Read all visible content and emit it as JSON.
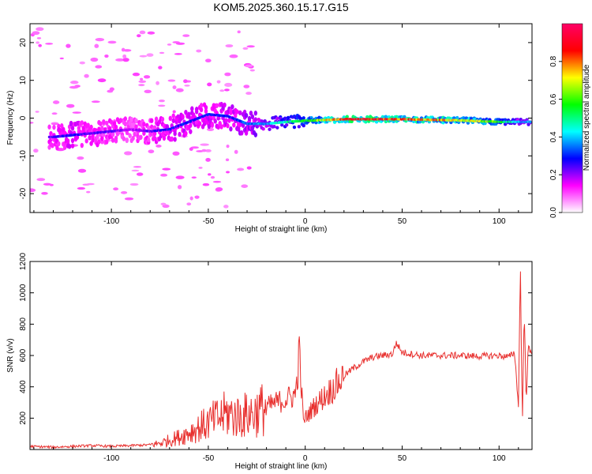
{
  "title": "KOM5.2025.360.15.17.G15",
  "colors": {
    "snr_line": "#e8302e",
    "axis": "#000000",
    "background": "#ffffff"
  },
  "chart_data": [
    {
      "type": "heatmap",
      "xlabel": "Height of straight line (km)",
      "ylabel": "Frequency (Hz)",
      "xlim": [
        -142,
        117
      ],
      "ylim": [
        -25,
        25
      ],
      "x_ticks": [
        -100,
        -50,
        0,
        50,
        100
      ],
      "y_ticks": [
        -20,
        -10,
        0,
        10,
        20
      ],
      "colorbar": {
        "label": "Normalized spectral amplitude",
        "range": [
          0,
          1
        ],
        "ticks": [
          "0.0",
          "0.2",
          "0.4",
          "0.6",
          "0.8"
        ],
        "tick_values": [
          0.0,
          0.2,
          0.4,
          0.6,
          0.8
        ],
        "colormap": [
          "#ffffff",
          "#ff00ff",
          "#0000ff",
          "#00ffff",
          "#00ff00",
          "#ffff00",
          "#ff0000",
          "#ff0066"
        ]
      },
      "ridge": [
        {
          "x": -130,
          "freq": -5.0,
          "amp": 0.25
        },
        {
          "x": -120,
          "freq": -4.5,
          "amp": 0.3
        },
        {
          "x": -110,
          "freq": -4.0,
          "amp": 0.25
        },
        {
          "x": -100,
          "freq": -3.5,
          "amp": 0.25
        },
        {
          "x": -90,
          "freq": -3.0,
          "amp": 0.2
        },
        {
          "x": -80,
          "freq": -3.5,
          "amp": 0.25
        },
        {
          "x": -70,
          "freq": -3.0,
          "amp": 0.3
        },
        {
          "x": -60,
          "freq": -1.0,
          "amp": 0.3
        },
        {
          "x": -50,
          "freq": 1.0,
          "amp": 0.3
        },
        {
          "x": -40,
          "freq": 0.5,
          "amp": 0.3
        },
        {
          "x": -30,
          "freq": -1.5,
          "amp": 0.35
        },
        {
          "x": -20,
          "freq": -1.5,
          "amp": 0.4
        },
        {
          "x": -10,
          "freq": -1.0,
          "amp": 0.5
        },
        {
          "x": 0,
          "freq": -0.7,
          "amp": 0.6
        },
        {
          "x": 10,
          "freq": -0.5,
          "amp": 0.75
        },
        {
          "x": 20,
          "freq": -0.3,
          "amp": 0.9
        },
        {
          "x": 30,
          "freq": -0.3,
          "amp": 0.95
        },
        {
          "x": 40,
          "freq": -0.3,
          "amp": 0.9
        },
        {
          "x": 50,
          "freq": -0.3,
          "amp": 0.85
        },
        {
          "x": 60,
          "freq": -0.4,
          "amp": 0.8
        },
        {
          "x": 70,
          "freq": -0.5,
          "amp": 0.8
        },
        {
          "x": 80,
          "freq": -0.6,
          "amp": 0.75
        },
        {
          "x": 90,
          "freq": -0.8,
          "amp": 0.7
        },
        {
          "x": 100,
          "freq": -1.0,
          "amp": 0.6
        },
        {
          "x": 110,
          "freq": -1.0,
          "amp": 0.4
        }
      ]
    },
    {
      "type": "line",
      "xlabel": "Height of straight line (km)",
      "ylabel": "SNR (v/v)",
      "xlim": [
        -142,
        117
      ],
      "ylim": [
        0,
        1200
      ],
      "x_ticks": [
        -100,
        -50,
        0,
        50,
        100
      ],
      "y_ticks": [
        200,
        400,
        600,
        800,
        1000,
        1200
      ],
      "series": [
        {
          "x": [
            -142,
            -130,
            -120,
            -110,
            -100,
            -90,
            -80,
            -75,
            -70,
            -65,
            -60,
            -55,
            -50,
            -45,
            -40,
            -35,
            -30,
            -25,
            -20,
            -15,
            -10,
            -5,
            -3,
            -1,
            0,
            5,
            10,
            15,
            20,
            25,
            30,
            35,
            40,
            45,
            47,
            50,
            55,
            60,
            65,
            70,
            80,
            90,
            100,
            105,
            108,
            110,
            111,
            112,
            113,
            114,
            115,
            117
          ],
          "y": [
            20,
            15,
            20,
            25,
            20,
            25,
            30,
            40,
            60,
            80,
            110,
            140,
            170,
            200,
            230,
            210,
            220,
            240,
            270,
            300,
            320,
            350,
            620,
            180,
            200,
            280,
            340,
            400,
            470,
            520,
            560,
            590,
            600,
            610,
            680,
            620,
            610,
            600,
            600,
            600,
            600,
            595,
            600,
            590,
            620,
            280,
            1180,
            160,
            900,
            300,
            650,
            600
          ]
        }
      ]
    }
  ]
}
